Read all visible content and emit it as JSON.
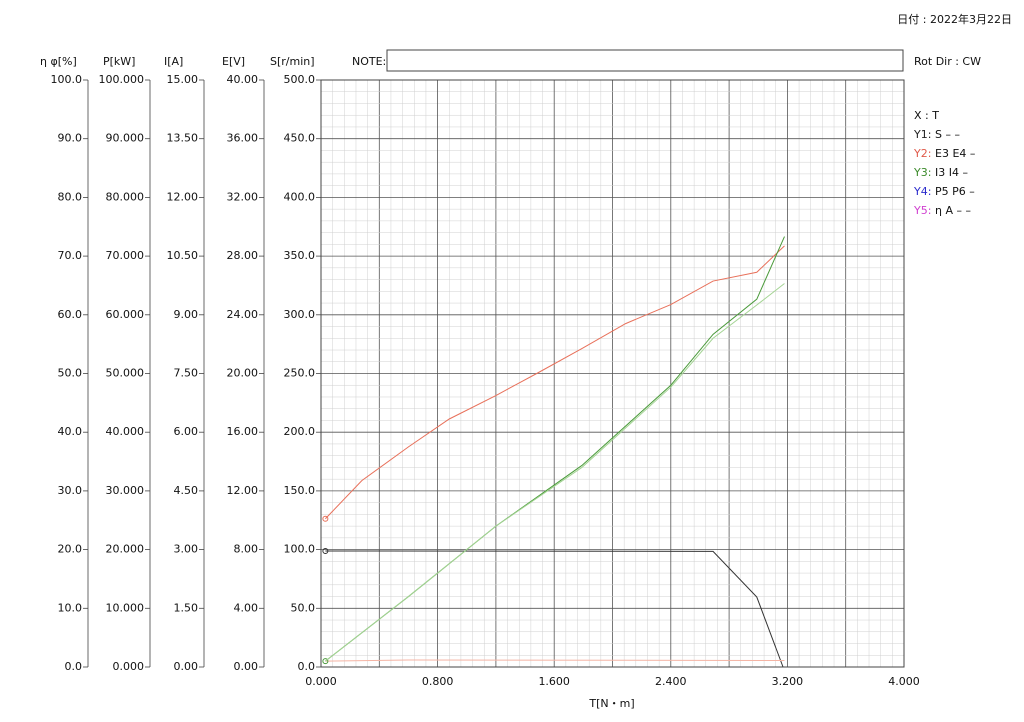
{
  "header": {
    "date": "日付 : 2022年3月22日",
    "note_label": "NOTE:",
    "rot_dir": "Rot Dir : CW"
  },
  "legend": {
    "x_label": "X : T",
    "entries": [
      {
        "label": "Y1:",
        "text": "S  –  –",
        "color": "#222222"
      },
      {
        "label": "Y2:",
        "text": "E3 E4  –",
        "color": "#e05a4a"
      },
      {
        "label": "Y3:",
        "text": "I3 I4  –",
        "color": "#3a8a2a"
      },
      {
        "label": "Y4:",
        "text": "P5 P6  –",
        "color": "#2a2acc"
      },
      {
        "label": "Y5:",
        "text": "η A  –  –",
        "color": "#d040d0"
      }
    ]
  },
  "chart_data": {
    "type": "line",
    "grid": true,
    "x_label": "T[N・m]",
    "xlim": [
      0,
      4
    ],
    "xticks": [
      {
        "value": 0,
        "label": "0.000"
      },
      {
        "value": 0.8,
        "label": "0.800"
      },
      {
        "value": 1.6,
        "label": "1.600"
      },
      {
        "value": 2.4,
        "label": "2.400"
      },
      {
        "value": 3.2,
        "label": "3.200"
      },
      {
        "value": 4,
        "label": "4.000"
      }
    ],
    "axes": [
      {
        "label": "η φ[%]",
        "lim": [
          0,
          100
        ],
        "ticks": [
          {
            "value": 0,
            "label": "0.0"
          },
          {
            "value": 10,
            "label": "10.0"
          },
          {
            "value": 20,
            "label": "20.0"
          },
          {
            "value": 30,
            "label": "30.0"
          },
          {
            "value": 40,
            "label": "40.0"
          },
          {
            "value": 50,
            "label": "50.0"
          },
          {
            "value": 60,
            "label": "60.0"
          },
          {
            "value": 70,
            "label": "70.0"
          },
          {
            "value": 80,
            "label": "80.0"
          },
          {
            "value": 90,
            "label": "90.0"
          },
          {
            "value": 100,
            "label": "100.0"
          }
        ]
      },
      {
        "label": "P[kW]",
        "lim": [
          0,
          100
        ],
        "ticks": [
          {
            "value": 0,
            "label": "0.000"
          },
          {
            "value": 10,
            "label": "10.000"
          },
          {
            "value": 20,
            "label": "20.000"
          },
          {
            "value": 30,
            "label": "30.000"
          },
          {
            "value": 40,
            "label": "40.000"
          },
          {
            "value": 50,
            "label": "50.000"
          },
          {
            "value": 60,
            "label": "60.000"
          },
          {
            "value": 70,
            "label": "70.000"
          },
          {
            "value": 80,
            "label": "80.000"
          },
          {
            "value": 90,
            "label": "90.000"
          },
          {
            "value": 100,
            "label": "100.000"
          }
        ]
      },
      {
        "label": "I[A]",
        "lim": [
          0,
          15
        ],
        "ticks": [
          {
            "value": 0,
            "label": "0.00"
          },
          {
            "value": 1.5,
            "label": "1.50"
          },
          {
            "value": 3,
            "label": "3.00"
          },
          {
            "value": 4.5,
            "label": "4.50"
          },
          {
            "value": 6,
            "label": "6.00"
          },
          {
            "value": 7.5,
            "label": "7.50"
          },
          {
            "value": 9,
            "label": "9.00"
          },
          {
            "value": 10.5,
            "label": "10.50"
          },
          {
            "value": 12,
            "label": "12.00"
          },
          {
            "value": 13.5,
            "label": "13.50"
          },
          {
            "value": 15,
            "label": "15.00"
          }
        ]
      },
      {
        "label": "E[V]",
        "lim": [
          0,
          40
        ],
        "ticks": [
          {
            "value": 0,
            "label": "0.00"
          },
          {
            "value": 4,
            "label": "4.00"
          },
          {
            "value": 8,
            "label": "8.00"
          },
          {
            "value": 12,
            "label": "12.00"
          },
          {
            "value": 16,
            "label": "16.00"
          },
          {
            "value": 20,
            "label": "20.00"
          },
          {
            "value": 24,
            "label": "24.00"
          },
          {
            "value": 28,
            "label": "28.00"
          },
          {
            "value": 32,
            "label": "32.00"
          },
          {
            "value": 36,
            "label": "36.00"
          },
          {
            "value": 40,
            "label": "40.00"
          }
        ]
      },
      {
        "label": "S[r/min]",
        "lim": [
          0,
          500
        ],
        "ticks": [
          {
            "value": 0,
            "label": "0.0"
          },
          {
            "value": 50,
            "label": "50.0"
          },
          {
            "value": 100,
            "label": "100.0"
          },
          {
            "value": 150,
            "label": "150.0"
          },
          {
            "value": 200,
            "label": "200.0"
          },
          {
            "value": 250,
            "label": "250.0"
          },
          {
            "value": 300,
            "label": "300.0"
          },
          {
            "value": 350,
            "label": "350.0"
          },
          {
            "value": 400,
            "label": "400.0"
          },
          {
            "value": 450,
            "label": "450.0"
          },
          {
            "value": 500,
            "label": "500.0"
          }
        ]
      }
    ],
    "series": [
      {
        "axis": 4,
        "color": "#333333",
        "start_marker": true,
        "x": [
          0.03,
          2.69,
          2.99,
          3.17
        ],
        "values": [
          98.8,
          98.5,
          59.6,
          0
        ]
      },
      {
        "axis": 3,
        "color": "#e8705a",
        "start_marker": true,
        "x": [
          0.03,
          0.28,
          0.6,
          0.88,
          1.2,
          1.48,
          1.79,
          2.09,
          2.4,
          2.69,
          2.99,
          3.18
        ],
        "values": [
          10.1,
          12.7,
          15.0,
          16.9,
          18.5,
          20.0,
          21.7,
          23.4,
          24.7,
          26.3,
          26.9,
          28.7
        ]
      },
      {
        "axis": 3,
        "color": "#f4b4a4",
        "start_marker": false,
        "x": [
          0.03,
          0.6,
          3.18
        ],
        "values": [
          0.4,
          0.48,
          0.44
        ]
      },
      {
        "axis": 2,
        "color": "#4a9a3a",
        "start_marker": true,
        "x": [
          0.03,
          0.6,
          1.2,
          1.79,
          2.4,
          2.69,
          2.99,
          3.18
        ],
        "values": [
          0.15,
          1.8,
          3.6,
          5.15,
          7.2,
          8.5,
          9.4,
          11.0
        ]
      },
      {
        "axis": 2,
        "color": "#a4d494",
        "start_marker": false,
        "x": [
          0.03,
          0.6,
          1.2,
          1.79,
          2.4,
          2.69,
          2.99,
          3.18
        ],
        "values": [
          0.15,
          1.8,
          3.6,
          5.1,
          7.15,
          8.4,
          9.25,
          9.8
        ]
      }
    ]
  }
}
